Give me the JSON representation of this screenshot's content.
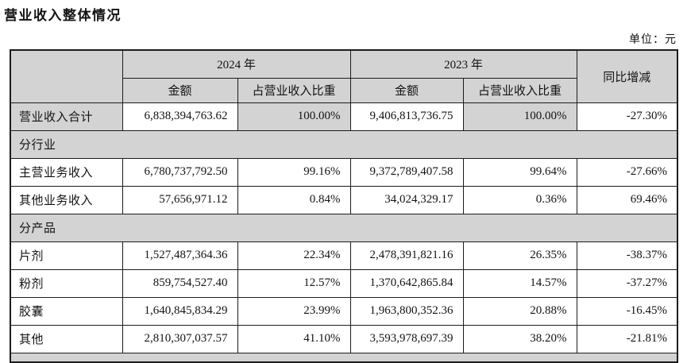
{
  "page": {
    "title": "营业收入整体情况",
    "unit_label": "单位：元"
  },
  "table": {
    "header": {
      "year_2024": "2024 年",
      "year_2023": "2023 年",
      "amount": "金额",
      "share": "占营业收入比重",
      "yoy": "同比增减"
    },
    "rows": [
      {
        "type": "data",
        "label": "营业收入合计",
        "amount_2024": "6,838,394,763.62",
        "share_2024": "100.00%",
        "amount_2023": "9,406,813,736.75",
        "share_2023": "100.00%",
        "yoy": "-27.30%",
        "shaded_cells": [
          "label",
          "share_2024",
          "share_2023"
        ]
      },
      {
        "type": "section",
        "label": "分行业"
      },
      {
        "type": "data",
        "label": "主营业务收入",
        "amount_2024": "6,780,737,792.50",
        "share_2024": "99.16%",
        "amount_2023": "9,372,789,407.58",
        "share_2023": "99.64%",
        "yoy": "-27.66%",
        "shaded_cells": []
      },
      {
        "type": "data",
        "label": "其他业务收入",
        "amount_2024": "57,656,971.12",
        "share_2024": "0.84%",
        "amount_2023": "34,024,329.17",
        "share_2023": "0.36%",
        "yoy": "69.46%",
        "shaded_cells": []
      },
      {
        "type": "section",
        "label": "分产品"
      },
      {
        "type": "data",
        "label": "片剂",
        "amount_2024": "1,527,487,364.36",
        "share_2024": "22.34%",
        "amount_2023": "2,478,391,821.16",
        "share_2023": "26.35%",
        "yoy": "-38.37%",
        "shaded_cells": []
      },
      {
        "type": "data",
        "label": "粉剂",
        "amount_2024": "859,754,527.40",
        "share_2024": "12.57%",
        "amount_2023": "1,370,642,865.84",
        "share_2023": "14.57%",
        "yoy": "-37.27%",
        "shaded_cells": []
      },
      {
        "type": "data",
        "label": "胶囊",
        "amount_2024": "1,640,845,834.29",
        "share_2024": "23.99%",
        "amount_2023": "1,963,800,352.36",
        "share_2023": "20.88%",
        "yoy": "-16.45%",
        "shaded_cells": []
      },
      {
        "type": "data",
        "label": "其他",
        "amount_2024": "2,810,307,037.57",
        "share_2024": "41.10%",
        "amount_2023": "3,593,978,697.39",
        "share_2023": "38.20%",
        "yoy": "-21.81%",
        "shaded_cells": []
      },
      {
        "type": "partial",
        "label": ""
      }
    ]
  },
  "colors": {
    "shade_gray": "#d3d3d3",
    "border": "#1c1c1c",
    "text": "#131313",
    "background": "#ffffff"
  }
}
